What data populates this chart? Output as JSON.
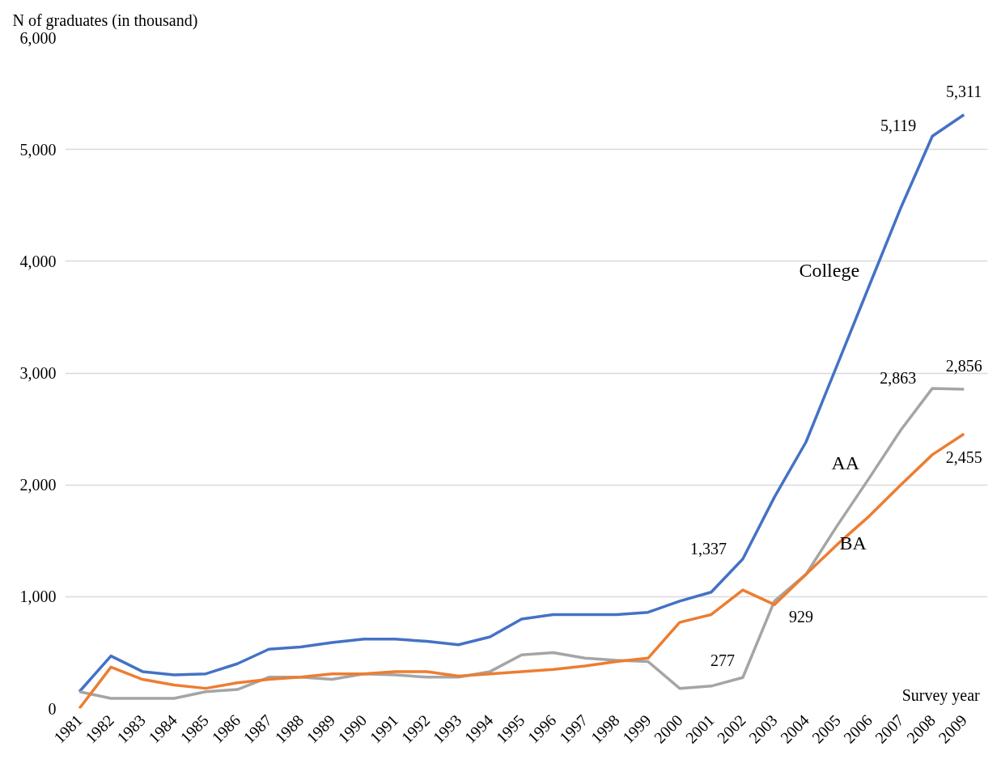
{
  "chart_data": {
    "type": "line",
    "ylabel": "N of graduates (in thousand)",
    "xlabel": "Survey year",
    "categories": [
      "1981",
      "1982",
      "1983",
      "1984",
      "1985",
      "1986",
      "1987",
      "1988",
      "1989",
      "1990",
      "1991",
      "1992",
      "1993",
      "1994",
      "1995",
      "1996",
      "1997",
      "1998",
      "1999",
      "2000",
      "2001",
      "2002",
      "2003",
      "2004",
      "2005",
      "2006",
      "2007",
      "2008",
      "2009"
    ],
    "ylim": [
      0,
      6000
    ],
    "yticks": [
      0,
      {
        "value": 1000,
        "label": "1,000"
      },
      {
        "value": 2000,
        "label": "2,000"
      },
      {
        "value": 3000,
        "label": "3,000"
      },
      {
        "value": 4000,
        "label": "4,000"
      },
      {
        "value": 5000,
        "label": "5,000"
      },
      {
        "value": 6000,
        "label": "6,000"
      }
    ],
    "grid": "y",
    "marker": "none",
    "line_style": "solid",
    "series": [
      {
        "name": "College",
        "color": "#4472c4",
        "values": [
          150,
          470,
          330,
          300,
          310,
          400,
          530,
          550,
          590,
          620,
          620,
          600,
          570,
          640,
          800,
          840,
          840,
          840,
          860,
          960,
          1040,
          1337,
          1890,
          2383,
          3080,
          3780,
          4477,
          5119,
          5311
        ],
        "value_labels": [
          null,
          null,
          null,
          null,
          null,
          null,
          null,
          null,
          null,
          null,
          null,
          null,
          null,
          null,
          null,
          null,
          null,
          null,
          null,
          null,
          null,
          "1,337",
          null,
          null,
          null,
          null,
          null,
          "5,119",
          "5,311"
        ]
      },
      {
        "name": "AA",
        "color": "#a5a5a5",
        "values": [
          150,
          90,
          90,
          90,
          150,
          170,
          280,
          280,
          260,
          310,
          300,
          280,
          280,
          330,
          480,
          500,
          450,
          430,
          420,
          180,
          200,
          277,
          960,
          1200,
          1640,
          2060,
          2490,
          2863,
          2856
        ],
        "value_labels": [
          null,
          null,
          null,
          null,
          null,
          null,
          null,
          null,
          null,
          null,
          null,
          null,
          null,
          null,
          null,
          null,
          null,
          null,
          null,
          null,
          null,
          "277",
          null,
          null,
          null,
          null,
          null,
          "2,863",
          "2,856"
        ]
      },
      {
        "name": "BA",
        "color": "#ed7d31",
        "values": [
          0,
          370,
          260,
          210,
          180,
          230,
          260,
          280,
          310,
          310,
          330,
          330,
          290,
          310,
          330,
          350,
          380,
          420,
          450,
          770,
          840,
          1060,
          929,
          1200,
          1470,
          1720,
          2000,
          2270,
          2455
        ],
        "value_labels": [
          null,
          null,
          null,
          null,
          null,
          null,
          null,
          null,
          null,
          null,
          null,
          null,
          null,
          null,
          null,
          null,
          null,
          null,
          null,
          null,
          null,
          null,
          "929",
          null,
          null,
          null,
          null,
          null,
          "2,455"
        ]
      }
    ]
  }
}
